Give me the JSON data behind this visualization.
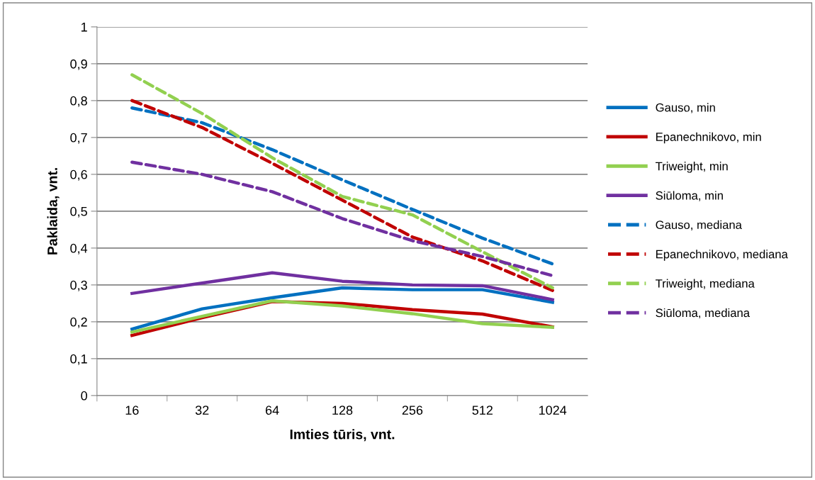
{
  "chart_data": {
    "type": "line",
    "xlabel": "Imties tūris, vnt.",
    "ylabel": "Paklaida, vnt.",
    "categories": [
      "16",
      "32",
      "64",
      "128",
      "256",
      "512",
      "1024"
    ],
    "ylim": [
      0,
      1
    ],
    "yticks": [
      {
        "value": 0,
        "label": "0"
      },
      {
        "value": 0.1,
        "label": "0,1"
      },
      {
        "value": 0.2,
        "label": "0,2"
      },
      {
        "value": 0.3,
        "label": "0,3"
      },
      {
        "value": 0.4,
        "label": "0,4"
      },
      {
        "value": 0.5,
        "label": "0,5"
      },
      {
        "value": 0.6,
        "label": "0,6"
      },
      {
        "value": 0.7,
        "label": "0,7"
      },
      {
        "value": 0.8,
        "label": "0,8"
      },
      {
        "value": 0.9,
        "label": "0,9"
      },
      {
        "value": 1,
        "label": "1"
      }
    ],
    "grid": "y",
    "legend": "right",
    "marker": "none",
    "series": [
      {
        "name": "Gauso, min",
        "color": "#0070c0",
        "line_style": "solid",
        "values": [
          0.18,
          0.235,
          0.265,
          0.292,
          0.287,
          0.287,
          0.253
        ]
      },
      {
        "name": "Epanechnikovo, min",
        "color": "#c00000",
        "line_style": "solid",
        "values": [
          0.163,
          0.211,
          0.255,
          0.25,
          0.233,
          0.221,
          0.186
        ]
      },
      {
        "name": "Triweight, min",
        "color": "#92d050",
        "line_style": "solid",
        "values": [
          0.172,
          0.215,
          0.257,
          0.243,
          0.222,
          0.195,
          0.185
        ]
      },
      {
        "name": "Siūloma, min",
        "color": "#7030a0",
        "line_style": "solid",
        "values": [
          0.277,
          0.305,
          0.333,
          0.31,
          0.3,
          0.298,
          0.26
        ]
      },
      {
        "name": "Gauso, mediana",
        "color": "#0070c0",
        "line_style": "dashed",
        "values": [
          0.78,
          0.74,
          0.667,
          0.585,
          0.505,
          0.427,
          0.357
        ]
      },
      {
        "name": "Epanechnikovo, mediana",
        "color": "#c00000",
        "line_style": "dashed",
        "values": [
          0.8,
          0.727,
          0.63,
          0.53,
          0.43,
          0.365,
          0.285
        ]
      },
      {
        "name": "Triweight, mediana",
        "color": "#92d050",
        "line_style": "dashed",
        "values": [
          0.87,
          0.765,
          0.645,
          0.54,
          0.49,
          0.39,
          0.292
        ]
      },
      {
        "name": "Siūloma, mediana",
        "color": "#7030a0",
        "line_style": "dashed",
        "values": [
          0.633,
          0.6,
          0.553,
          0.48,
          0.42,
          0.377,
          0.325
        ]
      }
    ]
  }
}
